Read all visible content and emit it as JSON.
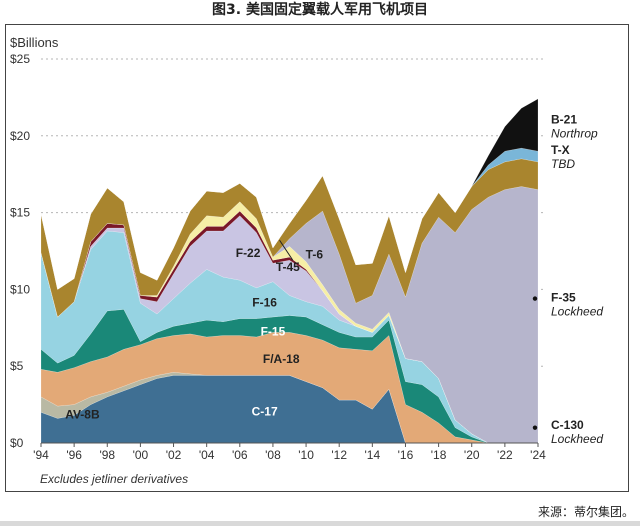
{
  "figure_title": "图3. 美国固定翼载人军用飞机项目",
  "source": "来源：蒂尔集团。",
  "chart_data": {
    "type": "area",
    "stacked": true,
    "title": "图3. 美国固定翼载人军用飞机项目",
    "ylabel": "$Billions",
    "xlabel": "",
    "xlim": [
      1994,
      2024
    ],
    "ylim": [
      0,
      25
    ],
    "grid": "dotted horizontal",
    "footnote": "Excludes jetliner derivatives",
    "x_tick_labels": [
      "'94",
      "'96",
      "'98",
      "'00",
      "'02",
      "'04",
      "'06",
      "'08",
      "'10",
      "'12",
      "'14",
      "'16",
      "'18",
      "'20",
      "'22",
      "'24"
    ],
    "y_tick_labels": [
      "$0",
      "$5",
      "$10",
      "$15",
      "$20",
      "$25"
    ],
    "x": [
      1994,
      1995,
      1996,
      1997,
      1998,
      1999,
      2000,
      2001,
      2002,
      2003,
      2004,
      2005,
      2006,
      2007,
      2008,
      2009,
      2010,
      2011,
      2012,
      2013,
      2014,
      2015,
      2016,
      2017,
      2018,
      2019,
      2020,
      2021,
      2022,
      2023,
      2024
    ],
    "series": [
      {
        "name": "C-17",
        "color": "#3f6f93",
        "values": [
          2.0,
          1.6,
          1.8,
          2.5,
          3.0,
          3.4,
          3.8,
          4.2,
          4.4,
          4.4,
          4.4,
          4.4,
          4.4,
          4.4,
          4.4,
          4.4,
          4.0,
          3.6,
          2.8,
          2.8,
          2.2,
          3.5,
          0,
          0,
          0,
          0,
          0,
          0,
          0,
          0,
          0
        ]
      },
      {
        "name": "AV-8B",
        "color": "#b9b9a4",
        "values": [
          1.0,
          0.8,
          0.7,
          0.5,
          0.3,
          0.3,
          0.3,
          0.2,
          0.2,
          0.1,
          0.0,
          0.0,
          0.0,
          0.0,
          0.0,
          0.0,
          0.0,
          0.0,
          0.0,
          0.0,
          0.0,
          0.0,
          0,
          0,
          0,
          0,
          0,
          0,
          0,
          0,
          0
        ]
      },
      {
        "name": "F/A-18",
        "color": "#e3a977",
        "values": [
          1.8,
          2.2,
          2.4,
          2.3,
          2.3,
          2.4,
          2.3,
          2.4,
          2.4,
          2.6,
          2.5,
          2.6,
          2.6,
          2.5,
          2.8,
          2.8,
          3.0,
          3.1,
          3.4,
          3.3,
          3.8,
          3.5,
          2.5,
          2.0,
          1.3,
          0.4,
          0.2,
          0,
          0,
          0,
          0
        ]
      },
      {
        "name": "F-15",
        "color": "#1a8878",
        "values": [
          1.3,
          0.6,
          0.8,
          1.8,
          3.0,
          2.6,
          0.2,
          0.4,
          0.6,
          0.7,
          1.1,
          0.9,
          1.1,
          1.2,
          1.0,
          1.1,
          1.2,
          1.0,
          1.0,
          0.8,
          0.9,
          1.0,
          1.5,
          1.8,
          1.7,
          0.6,
          0.2,
          0,
          0,
          0,
          0
        ]
      },
      {
        "name": "F-16",
        "color": "#96d3e2",
        "values": [
          6.3,
          3.0,
          3.5,
          5.5,
          5.2,
          5.0,
          2.5,
          1.2,
          1.8,
          2.6,
          3.3,
          2.9,
          2.5,
          2.0,
          2.3,
          1.3,
          1.0,
          1.2,
          0.8,
          0.7,
          0.3,
          0.3,
          1.5,
          1.5,
          1.2,
          0.5,
          0.2,
          0,
          0,
          0,
          0
        ]
      },
      {
        "name": "F-22",
        "color": "#c9c5e3",
        "values": [
          0,
          0,
          0,
          0.2,
          0.2,
          0.3,
          0.3,
          0.8,
          1.6,
          2.4,
          2.5,
          3.0,
          4.2,
          3.6,
          1.2,
          2.3,
          2.0,
          1.0,
          0.4,
          0,
          0,
          0,
          0,
          0,
          0,
          0,
          0,
          0,
          0,
          0,
          0
        ]
      },
      {
        "name": "T-45",
        "color": "#7a1828",
        "values": [
          0,
          0,
          0,
          0.3,
          0.3,
          0.2,
          0.2,
          0.3,
          0.3,
          0.3,
          0.3,
          0.3,
          0.3,
          0.3,
          0.2,
          0.2,
          0.1,
          0,
          0,
          0,
          0,
          0,
          0,
          0,
          0,
          0,
          0,
          0,
          0,
          0,
          0
        ]
      },
      {
        "name": "T-6",
        "color": "#f6eea6",
        "values": [
          0,
          0,
          0,
          0,
          0,
          0,
          0,
          0.1,
          0.2,
          0.5,
          0.7,
          0.6,
          0.6,
          0.6,
          0.2,
          0.7,
          0.5,
          0.4,
          0.3,
          0.2,
          0.2,
          0.2,
          0,
          0,
          0,
          0,
          0,
          0,
          0,
          0,
          0
        ]
      },
      {
        "name": "F-35",
        "color": "#b6b5cc",
        "values": [
          0,
          0,
          0,
          0,
          0,
          0,
          0,
          0,
          0,
          0,
          0,
          0,
          0,
          0,
          0,
          0.5,
          2.5,
          4.8,
          3.6,
          1.3,
          2.2,
          3.8,
          4.0,
          7.7,
          10.5,
          12.2,
          14.6,
          16.0,
          16.5,
          16.7,
          16.5
        ]
      },
      {
        "name": "C-130",
        "color": "#a9852e",
        "values": [
          2.5,
          1.8,
          1.5,
          1.8,
          2.3,
          1.5,
          1.5,
          1.0,
          1.2,
          1.5,
          1.6,
          1.6,
          1.2,
          1.4,
          0.6,
          1.0,
          1.5,
          2.3,
          2.3,
          2.5,
          2.1,
          2.5,
          1.6,
          1.6,
          1.6,
          1.3,
          1.5,
          1.8,
          1.8,
          1.8,
          1.8
        ]
      },
      {
        "name": "T-X",
        "color": "#7ab6d8",
        "values": [
          0,
          0,
          0,
          0,
          0,
          0,
          0,
          0,
          0,
          0,
          0,
          0,
          0,
          0,
          0,
          0,
          0,
          0,
          0,
          0,
          0,
          0,
          0,
          0,
          0,
          0,
          0,
          0.3,
          0.7,
          0.7,
          0.7
        ]
      },
      {
        "name": "B-21",
        "color": "#111111",
        "values": [
          0,
          0,
          0,
          0,
          0,
          0,
          0,
          0,
          0,
          0,
          0,
          0,
          0,
          0,
          0,
          0,
          0,
          0,
          0,
          0,
          0,
          0,
          0,
          0,
          0,
          0,
          0,
          0.6,
          1.6,
          2.6,
          3.4
        ]
      }
    ],
    "inline_labels": [
      "C-17",
      "AV-8B",
      "F/A-18",
      "F-15",
      "F-16",
      "F-22",
      "T-45",
      "T-6"
    ],
    "right_labels": [
      {
        "program": "B-21",
        "contractor": "Northrop"
      },
      {
        "program": "T-X",
        "contractor": "TBD"
      },
      {
        "program": "F-35",
        "contractor": "Lockheed"
      },
      {
        "program": "C-130",
        "contractor": "Lockheed"
      }
    ]
  }
}
